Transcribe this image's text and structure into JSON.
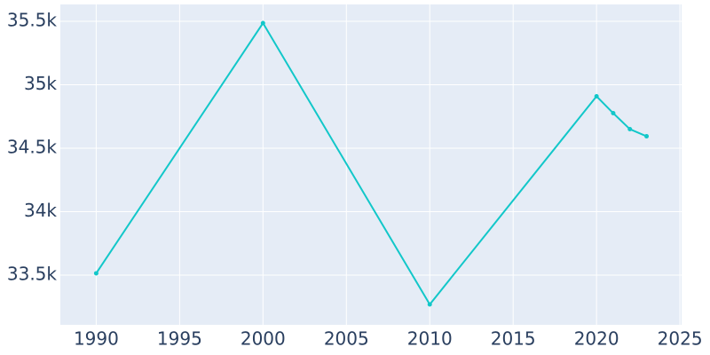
{
  "chart_data": {
    "type": "line",
    "x": [
      1990,
      2000,
      2010,
      2020,
      2021,
      2022,
      2023
    ],
    "series": [
      {
        "color": "#12c7c9",
        "values": [
          33514,
          35486,
          33269,
          34909,
          34776,
          34650,
          34594
        ]
      }
    ],
    "xlim": [
      1987.85,
      2025.1
    ],
    "xticks": [
      1990,
      1995,
      2000,
      2005,
      2010,
      2015,
      2020,
      2025
    ],
    "ylim": [
      33108,
      35633
    ],
    "yticks": [
      {
        "value": 33500,
        "label": "33.5k"
      },
      {
        "value": 34000,
        "label": "34k"
      },
      {
        "value": 34500,
        "label": "34.5k"
      },
      {
        "value": 35000,
        "label": "35k"
      },
      {
        "value": 35500,
        "label": "35.5k"
      }
    ],
    "grid": true
  }
}
